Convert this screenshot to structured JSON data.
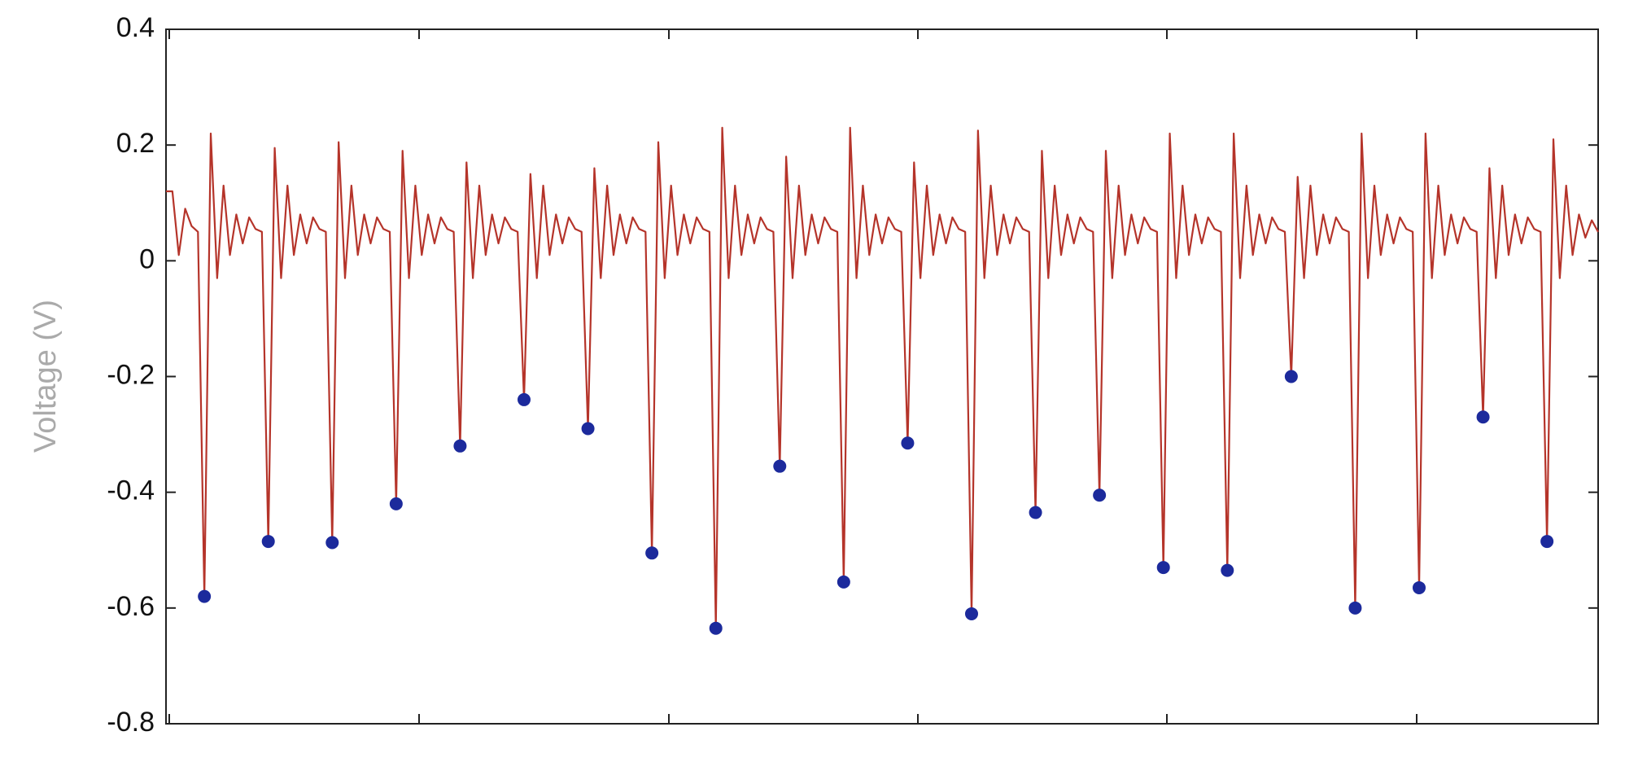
{
  "chart_data": {
    "type": "line",
    "y_label": "Voltage (V)",
    "ylim": [
      -0.8,
      0.4
    ],
    "yticks": [
      -0.8,
      -0.6,
      -0.4,
      -0.2,
      0,
      0.2,
      0.4
    ],
    "grid": false,
    "series": [
      {
        "color": "#b5342a",
        "values": [
          0.12,
          0.12,
          0.01,
          0.09,
          0.06,
          0.05,
          -0.58,
          0.22,
          -0.03,
          0.13,
          0.01,
          0.08,
          0.03,
          0.075,
          0.055,
          0.05,
          -0.485,
          0.195,
          -0.03,
          0.13,
          0.01,
          0.08,
          0.03,
          0.075,
          0.055,
          0.05,
          -0.487,
          0.205,
          -0.03,
          0.13,
          0.01,
          0.08,
          0.03,
          0.075,
          0.055,
          0.05,
          -0.42,
          0.19,
          -0.03,
          0.13,
          0.01,
          0.08,
          0.03,
          0.075,
          0.055,
          0.05,
          -0.32,
          0.17,
          -0.03,
          0.13,
          0.01,
          0.08,
          0.03,
          0.075,
          0.055,
          0.05,
          -0.24,
          0.15,
          -0.03,
          0.13,
          0.01,
          0.08,
          0.03,
          0.075,
          0.055,
          0.05,
          -0.29,
          0.16,
          -0.03,
          0.13,
          0.01,
          0.08,
          0.03,
          0.075,
          0.055,
          0.05,
          -0.505,
          0.205,
          -0.03,
          0.13,
          0.01,
          0.08,
          0.03,
          0.075,
          0.055,
          0.05,
          -0.635,
          0.23,
          -0.03,
          0.13,
          0.01,
          0.08,
          0.03,
          0.075,
          0.055,
          0.05,
          -0.355,
          0.18,
          -0.03,
          0.13,
          0.01,
          0.08,
          0.03,
          0.075,
          0.055,
          0.05,
          -0.555,
          0.23,
          -0.03,
          0.13,
          0.01,
          0.08,
          0.03,
          0.075,
          0.055,
          0.05,
          -0.315,
          0.17,
          -0.03,
          0.13,
          0.01,
          0.08,
          0.03,
          0.075,
          0.055,
          0.05,
          -0.61,
          0.225,
          -0.03,
          0.13,
          0.01,
          0.08,
          0.03,
          0.075,
          0.055,
          0.05,
          -0.435,
          0.19,
          -0.03,
          0.13,
          0.01,
          0.08,
          0.03,
          0.075,
          0.055,
          0.05,
          -0.405,
          0.19,
          -0.03,
          0.13,
          0.01,
          0.08,
          0.03,
          0.075,
          0.055,
          0.05,
          -0.53,
          0.22,
          -0.03,
          0.13,
          0.01,
          0.08,
          0.03,
          0.075,
          0.055,
          0.05,
          -0.535,
          0.22,
          -0.03,
          0.13,
          0.01,
          0.08,
          0.03,
          0.075,
          0.055,
          0.05,
          -0.2,
          0.145,
          -0.03,
          0.13,
          0.01,
          0.08,
          0.03,
          0.075,
          0.055,
          0.05,
          -0.6,
          0.22,
          -0.03,
          0.13,
          0.01,
          0.08,
          0.03,
          0.075,
          0.055,
          0.05,
          -0.565,
          0.22,
          -0.03,
          0.13,
          0.01,
          0.08,
          0.03,
          0.075,
          0.055,
          0.05,
          -0.27,
          0.16,
          -0.03,
          0.13,
          0.01,
          0.08,
          0.03,
          0.075,
          0.055,
          0.05,
          -0.485,
          0.21,
          -0.03,
          0.13,
          0.01,
          0.08,
          0.04,
          0.07,
          0.05
        ]
      }
    ],
    "markers": {
      "color": "#1c2a9c",
      "x": [
        6,
        16,
        26,
        36,
        46,
        56,
        66,
        76,
        86,
        96,
        106,
        116,
        126,
        136,
        146,
        156,
        166,
        176,
        186,
        196,
        206,
        216
      ],
      "values": [
        -0.58,
        -0.485,
        -0.487,
        -0.42,
        -0.32,
        -0.24,
        -0.29,
        -0.505,
        -0.635,
        -0.355,
        -0.555,
        -0.315,
        -0.61,
        -0.435,
        -0.405,
        -0.53,
        -0.535,
        -0.2,
        -0.6,
        -0.565,
        -0.27,
        -0.485
      ]
    }
  }
}
